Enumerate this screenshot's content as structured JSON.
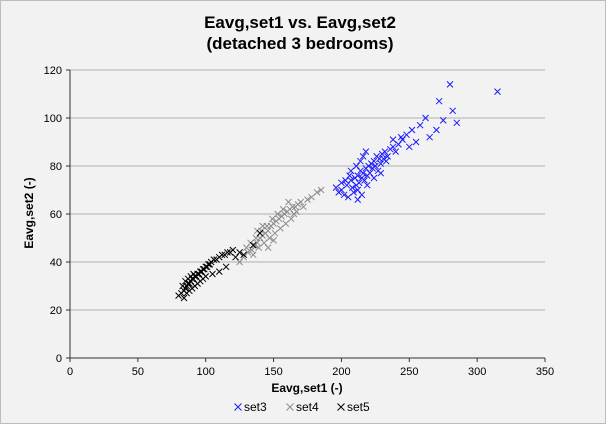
{
  "chart_data": {
    "type": "scatter",
    "title": "Eavg,set1 vs. Eavg,set2",
    "subtitle": "(detached 3 bedrooms)",
    "xlabel": "Eavg,set1 (-)",
    "ylabel": "Eavg,set2 (-)",
    "xlim": [
      0,
      350
    ],
    "ylim": [
      0,
      120
    ],
    "xticks": [
      0,
      50,
      100,
      150,
      200,
      250,
      300,
      350
    ],
    "yticks": [
      0,
      20,
      40,
      60,
      80,
      100,
      120
    ],
    "grid": "horizontal",
    "legend_position": "bottom",
    "marker": "×",
    "series": [
      {
        "name": "set3",
        "color": "#1a1aff",
        "points": [
          [
            200,
            70
          ],
          [
            204,
            72
          ],
          [
            207,
            74
          ],
          [
            210,
            75
          ],
          [
            212,
            76
          ],
          [
            214,
            78
          ],
          [
            216,
            77
          ],
          [
            218,
            79
          ],
          [
            220,
            80
          ],
          [
            222,
            81
          ],
          [
            208,
            71
          ],
          [
            206,
            76
          ],
          [
            213,
            73
          ],
          [
            217,
            74
          ],
          [
            221,
            77
          ],
          [
            224,
            82
          ],
          [
            226,
            84
          ],
          [
            228,
            83
          ],
          [
            230,
            85
          ],
          [
            232,
            86
          ],
          [
            234,
            84
          ],
          [
            236,
            87
          ],
          [
            238,
            88
          ],
          [
            240,
            86
          ],
          [
            242,
            89
          ],
          [
            245,
            91
          ],
          [
            248,
            93
          ],
          [
            202,
            68
          ],
          [
            205,
            67
          ],
          [
            209,
            69
          ],
          [
            211,
            72
          ],
          [
            215,
            75
          ],
          [
            219,
            76
          ],
          [
            223,
            79
          ],
          [
            225,
            80
          ],
          [
            227,
            78
          ],
          [
            229,
            81
          ],
          [
            231,
            83
          ],
          [
            233,
            82
          ],
          [
            203,
            74
          ],
          [
            207,
            78
          ],
          [
            211,
            80
          ],
          [
            214,
            82
          ],
          [
            216,
            84
          ],
          [
            218,
            86
          ],
          [
            212,
            70
          ],
          [
            219,
            72
          ],
          [
            224,
            75
          ],
          [
            229,
            77
          ],
          [
            200,
            73
          ],
          [
            198,
            69
          ],
          [
            196,
            71
          ],
          [
            252,
            95
          ],
          [
            258,
            97
          ],
          [
            262,
            100
          ],
          [
            265,
            92
          ],
          [
            270,
            95
          ],
          [
            272,
            107
          ],
          [
            275,
            99
          ],
          [
            280,
            114
          ],
          [
            282,
            103
          ],
          [
            285,
            98
          ],
          [
            315,
            111
          ],
          [
            255,
            90
          ],
          [
            250,
            88
          ],
          [
            244,
            92
          ],
          [
            238,
            91
          ],
          [
            212,
            66
          ],
          [
            215,
            68
          ]
        ]
      },
      {
        "name": "set4",
        "color": "#8c8c8c",
        "points": [
          [
            125,
            40
          ],
          [
            128,
            42
          ],
          [
            131,
            44
          ],
          [
            134,
            45
          ],
          [
            136,
            47
          ],
          [
            138,
            48
          ],
          [
            140,
            50
          ],
          [
            142,
            51
          ],
          [
            144,
            52
          ],
          [
            146,
            53
          ],
          [
            148,
            55
          ],
          [
            150,
            56
          ],
          [
            152,
            57
          ],
          [
            154,
            58
          ],
          [
            156,
            59
          ],
          [
            158,
            60
          ],
          [
            160,
            61
          ],
          [
            162,
            62
          ],
          [
            164,
            63
          ],
          [
            166,
            63
          ],
          [
            168,
            64
          ],
          [
            170,
            65
          ],
          [
            133,
            48
          ],
          [
            137,
            50
          ],
          [
            141,
            53
          ],
          [
            145,
            55
          ],
          [
            149,
            58
          ],
          [
            153,
            60
          ],
          [
            139,
            46
          ],
          [
            143,
            48
          ],
          [
            147,
            50
          ],
          [
            151,
            52
          ],
          [
            155,
            54
          ],
          [
            159,
            56
          ],
          [
            135,
            43
          ],
          [
            130,
            46
          ],
          [
            157,
            62
          ],
          [
            161,
            65
          ],
          [
            165,
            60
          ],
          [
            172,
            63
          ],
          [
            175,
            66
          ],
          [
            178,
            67
          ],
          [
            182,
            69
          ],
          [
            185,
            70
          ],
          [
            150,
            49
          ],
          [
            146,
            46
          ],
          [
            142,
            55
          ],
          [
            138,
            53
          ],
          [
            163,
            58
          ],
          [
            167,
            61
          ]
        ]
      },
      {
        "name": "set5",
        "color": "#000000",
        "points": [
          [
            80,
            26
          ],
          [
            82,
            27
          ],
          [
            84,
            28
          ],
          [
            85,
            29
          ],
          [
            86,
            30
          ],
          [
            87,
            31
          ],
          [
            88,
            31
          ],
          [
            89,
            32
          ],
          [
            90,
            33
          ],
          [
            91,
            33
          ],
          [
            92,
            34
          ],
          [
            93,
            34
          ],
          [
            94,
            35
          ],
          [
            95,
            35
          ],
          [
            96,
            36
          ],
          [
            97,
            36
          ],
          [
            98,
            37
          ],
          [
            99,
            37
          ],
          [
            100,
            38
          ],
          [
            101,
            38
          ],
          [
            102,
            39
          ],
          [
            103,
            39
          ],
          [
            104,
            40
          ],
          [
            106,
            41
          ],
          [
            108,
            41
          ],
          [
            110,
            42
          ],
          [
            112,
            43
          ],
          [
            114,
            43
          ],
          [
            116,
            44
          ],
          [
            118,
            44
          ],
          [
            120,
            45
          ],
          [
            83,
            30
          ],
          [
            85,
            32
          ],
          [
            87,
            33
          ],
          [
            89,
            34
          ],
          [
            91,
            35
          ],
          [
            86,
            27
          ],
          [
            88,
            28
          ],
          [
            90,
            29
          ],
          [
            92,
            30
          ],
          [
            94,
            31
          ],
          [
            96,
            32
          ],
          [
            98,
            33
          ],
          [
            100,
            34
          ],
          [
            84,
            25
          ],
          [
            122,
            42
          ],
          [
            125,
            44
          ],
          [
            128,
            43
          ],
          [
            135,
            47
          ],
          [
            140,
            52
          ],
          [
            115,
            38
          ],
          [
            110,
            36
          ],
          [
            105,
            35
          ]
        ]
      }
    ]
  }
}
